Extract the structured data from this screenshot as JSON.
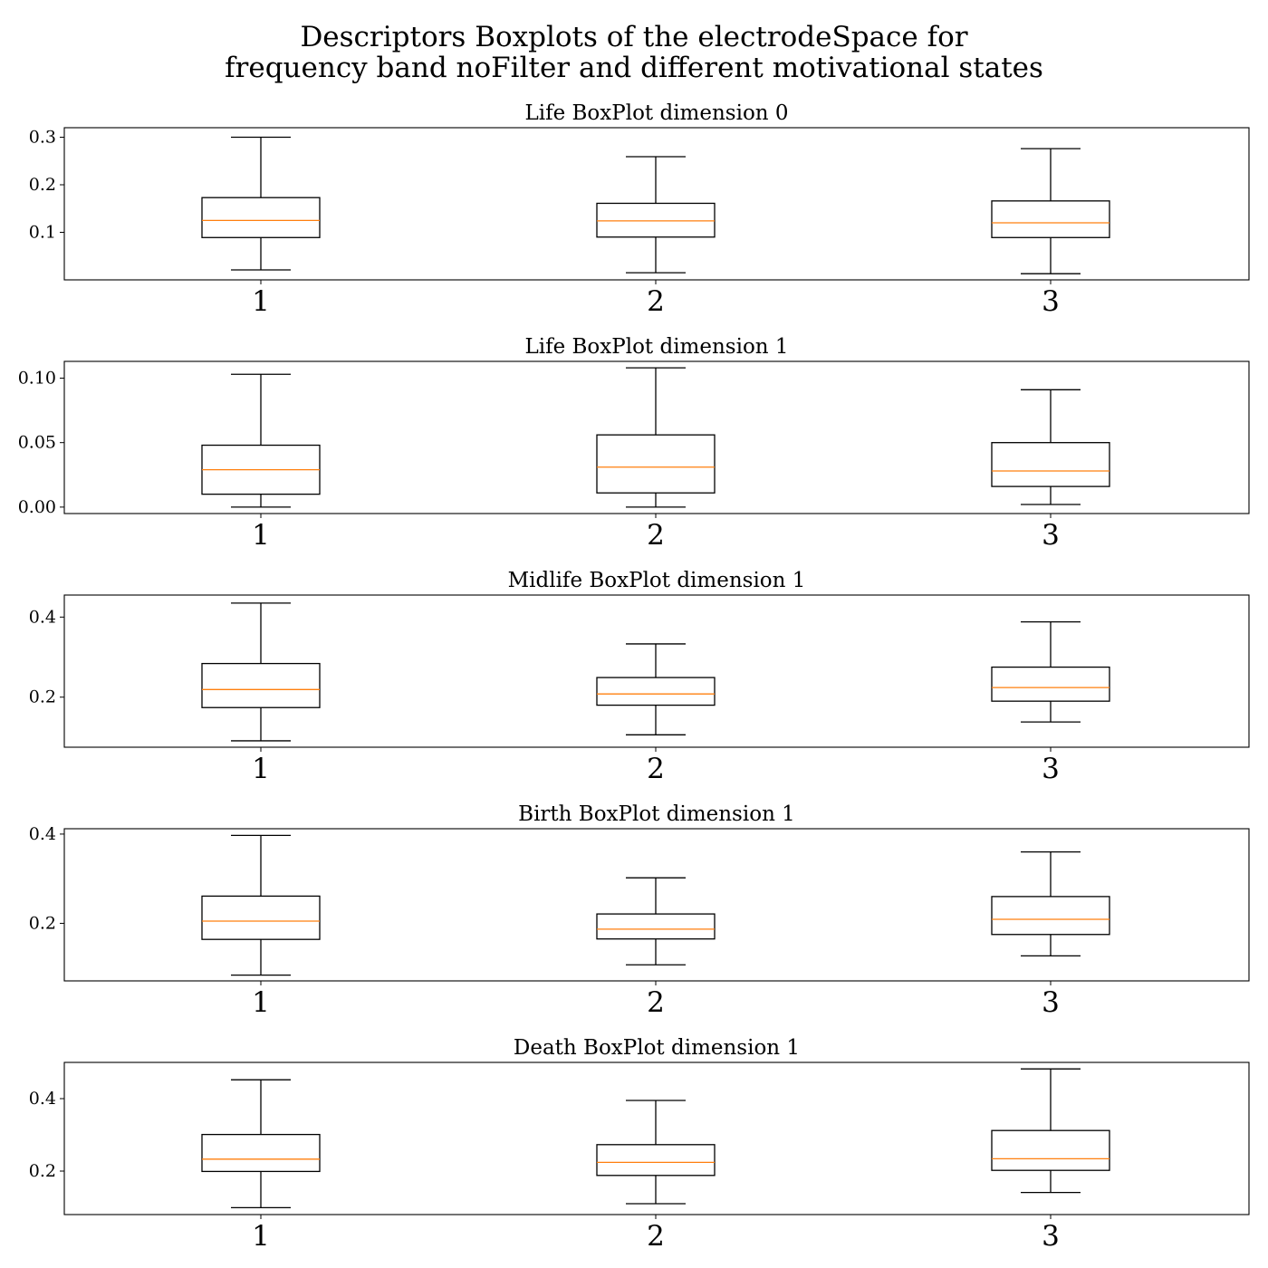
{
  "chart_data": {
    "type": "boxplot",
    "title": [
      "Descriptors Boxplots of the electrodeSpace for",
      "frequency band noFilter and different motivational states"
    ],
    "colors": {
      "box": "#000000",
      "median": "#ff7f0e",
      "frame": "#000000"
    },
    "subplots": [
      {
        "title": "Life BoxPlot dimension 0",
        "categories": [
          "1",
          "2",
          "3"
        ],
        "ylim": [
          0.0,
          0.32
        ],
        "yticks": [
          {
            "value": 0.1,
            "label": "0.1"
          },
          {
            "value": 0.2,
            "label": "0.2"
          },
          {
            "value": 0.3,
            "label": "0.3"
          }
        ],
        "boxes": [
          {
            "whislo": 0.021,
            "q1": 0.089,
            "med": 0.125,
            "q3": 0.173,
            "whishi": 0.3
          },
          {
            "whislo": 0.015,
            "q1": 0.09,
            "med": 0.124,
            "q3": 0.161,
            "whishi": 0.259
          },
          {
            "whislo": 0.013,
            "q1": 0.089,
            "med": 0.12,
            "q3": 0.166,
            "whishi": 0.276
          }
        ]
      },
      {
        "title": "Life BoxPlot dimension 1",
        "categories": [
          "1",
          "2",
          "3"
        ],
        "ylim": [
          -0.005,
          0.113
        ],
        "yticks": [
          {
            "value": 0.0,
            "label": "0.00"
          },
          {
            "value": 0.05,
            "label": "0.05"
          },
          {
            "value": 0.1,
            "label": "0.10"
          }
        ],
        "boxes": [
          {
            "whislo": 0.0,
            "q1": 0.01,
            "med": 0.029,
            "q3": 0.048,
            "whishi": 0.103
          },
          {
            "whislo": 0.0,
            "q1": 0.011,
            "med": 0.031,
            "q3": 0.056,
            "whishi": 0.108
          },
          {
            "whislo": 0.002,
            "q1": 0.016,
            "med": 0.028,
            "q3": 0.05,
            "whishi": 0.091
          }
        ]
      },
      {
        "title": "Midlife BoxPlot dimension 1",
        "categories": [
          "1",
          "2",
          "3"
        ],
        "ylim": [
          0.075,
          0.455
        ],
        "yticks": [
          {
            "value": 0.2,
            "label": "0.2"
          },
          {
            "value": 0.4,
            "label": "0.4"
          }
        ],
        "boxes": [
          {
            "whislo": 0.091,
            "q1": 0.174,
            "med": 0.219,
            "q3": 0.284,
            "whishi": 0.435
          },
          {
            "whislo": 0.106,
            "q1": 0.18,
            "med": 0.208,
            "q3": 0.249,
            "whishi": 0.333
          },
          {
            "whislo": 0.138,
            "q1": 0.19,
            "med": 0.224,
            "q3": 0.275,
            "whishi": 0.388
          }
        ]
      },
      {
        "title": "Birth BoxPlot dimension 1",
        "categories": [
          "1",
          "2",
          "3"
        ],
        "ylim": [
          0.071,
          0.412
        ],
        "yticks": [
          {
            "value": 0.2,
            "label": "0.2"
          },
          {
            "value": 0.4,
            "label": "0.4"
          }
        ],
        "boxes": [
          {
            "whislo": 0.084,
            "q1": 0.164,
            "med": 0.205,
            "q3": 0.261,
            "whishi": 0.397
          },
          {
            "whislo": 0.107,
            "q1": 0.165,
            "med": 0.187,
            "q3": 0.221,
            "whishi": 0.302
          },
          {
            "whislo": 0.127,
            "q1": 0.175,
            "med": 0.209,
            "q3": 0.26,
            "whishi": 0.36
          }
        ]
      },
      {
        "title": "Death BoxPlot dimension 1",
        "categories": [
          "1",
          "2",
          "3"
        ],
        "ylim": [
          0.08,
          0.5
        ],
        "yticks": [
          {
            "value": 0.2,
            "label": "0.2"
          },
          {
            "value": 0.4,
            "label": "0.4"
          }
        ],
        "boxes": [
          {
            "whislo": 0.099,
            "q1": 0.199,
            "med": 0.233,
            "q3": 0.301,
            "whishi": 0.452
          },
          {
            "whislo": 0.11,
            "q1": 0.188,
            "med": 0.224,
            "q3": 0.273,
            "whishi": 0.395
          },
          {
            "whislo": 0.141,
            "q1": 0.202,
            "med": 0.234,
            "q3": 0.312,
            "whishi": 0.482
          }
        ]
      }
    ]
  }
}
